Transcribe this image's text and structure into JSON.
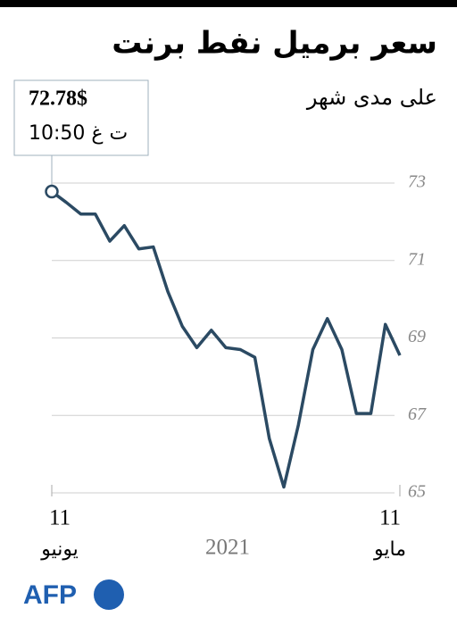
{
  "chart_data": {
    "type": "line",
    "title": "سعر برميل نفط برنت",
    "subtitle": "على مدى شهر",
    "x_label": "2021",
    "categories": [
      "11",
      null,
      null,
      null,
      null,
      null,
      null,
      null,
      null,
      null,
      null,
      null,
      null,
      null,
      null,
      null,
      null,
      null,
      null,
      null,
      null,
      null,
      null,
      null,
      "11"
    ],
    "category_months": [
      "يونيو",
      null,
      null,
      null,
      null,
      null,
      null,
      null,
      null,
      null,
      null,
      null,
      null,
      null,
      null,
      null,
      null,
      null,
      null,
      null,
      null,
      null,
      null,
      null,
      "مايو"
    ],
    "series": [
      {
        "color": "#2b4a63",
        "values": [
          72.78,
          72.5,
          72.2,
          72.2,
          71.5,
          71.9,
          71.3,
          71.35,
          70.2,
          69.3,
          68.75,
          69.2,
          68.75,
          68.7,
          68.5,
          66.4,
          65.15,
          66.75,
          68.7,
          69.5,
          68.7,
          67.05,
          67.05,
          69.35,
          68.55
        ],
        "value_labels": [
          "72.78$",
          null,
          null,
          null,
          null,
          null,
          null,
          null,
          null,
          null,
          null,
          null,
          null,
          null,
          null,
          null,
          null,
          null,
          null,
          null,
          null,
          null,
          null,
          null,
          null
        ]
      }
    ],
    "annotation": "10:50 ت غ",
    "ylim": [
      65,
      73
    ],
    "yticks": [
      65,
      67,
      69,
      71,
      73
    ],
    "grid": true,
    "source": "AFP"
  }
}
